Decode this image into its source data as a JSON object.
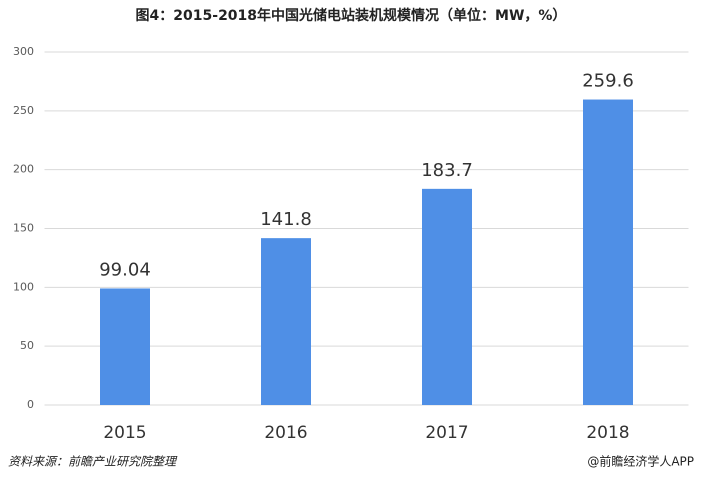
{
  "chart_data": {
    "type": "bar",
    "title": "图4：2015-2018年中国光储电站装机规模情况（单位：MW，%）",
    "categories": [
      "2015",
      "2016",
      "2017",
      "2018"
    ],
    "values": [
      99.04,
      141.8,
      183.7,
      259.6
    ],
    "color": "#4f8fe6",
    "ylim": [
      0,
      300
    ],
    "yticks": [
      0,
      50,
      100,
      150,
      200,
      250,
      300
    ],
    "grid": true,
    "source": "资料来源：前瞻产业研究院整理",
    "credit": "@前瞻经济学人APP"
  }
}
